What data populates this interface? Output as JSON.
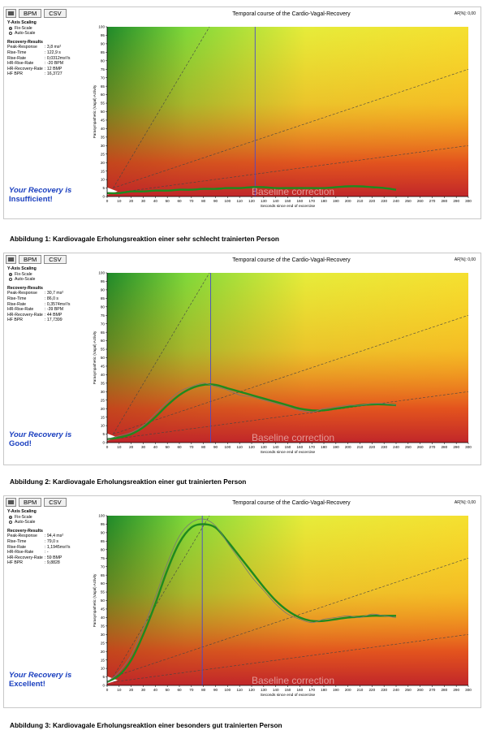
{
  "toolbar": {
    "bpm_label": "BPM",
    "csv_label": "CSV"
  },
  "af_label": "AF[%]: 0,00",
  "yaxis_scaling": {
    "title": "Y-Axis Scaling",
    "options": [
      "Fix-Scale",
      "Auto-Scale"
    ],
    "selected": "Fix-Scale"
  },
  "colors": {
    "curve_thick": "#1f8a1f",
    "curve_thin": "#777777",
    "verdict": "#1a3fbf",
    "marker": "#4a4acc"
  },
  "charts": [
    {
      "results": {
        "heading": "Recovery-Results",
        "rows": [
          {
            "k": "Peak-Response",
            "v": ": 3,8 ms²"
          },
          {
            "k": "Rise-Time",
            "v": ": 122,9 s"
          },
          {
            "k": "Rise-Rate",
            "v": ": 0,0312ms²/s"
          },
          {
            "k": "HR-Rise-Rate",
            "v": ": -20 BPM"
          },
          {
            "k": "HR-Recovery-Rate",
            "v": ": 12 BMP"
          },
          {
            "k": "HF BPR",
            "v": ": 16,3727"
          }
        ]
      },
      "verdict": {
        "line1": "Your Recovery is",
        "line2": "Insufficient!"
      },
      "watermark": "Baseline correction",
      "caption": "Abbildung 1: Kardiovagale Erholungsreaktion einer sehr schlecht trainierten Person"
    },
    {
      "results": {
        "heading": "Recovery-Results",
        "rows": [
          {
            "k": "Peak-Response",
            "v": ": 30,7 ms²"
          },
          {
            "k": "Rise-Time",
            "v": ": 86,0 s"
          },
          {
            "k": "Rise-Rate",
            "v": ": 0,3574ms²/s"
          },
          {
            "k": "HR-Rise-Rate",
            "v": ": -39 BPM"
          },
          {
            "k": "HR-Recovery-Rate",
            "v": ": 44 BMP"
          },
          {
            "k": "HF BPR",
            "v": ": 17,7399"
          }
        ]
      },
      "verdict": {
        "line1": "Your Recovery is",
        "line2": "Good!"
      },
      "watermark": "Baseline correction",
      "caption": "Abbildung 2: Kardiovagale Erholungsreaktion einer gut trainierten Person"
    },
    {
      "results": {
        "heading": "Recovery-Results",
        "rows": [
          {
            "k": "Peak-Response",
            "v": ": 94,4 ms²"
          },
          {
            "k": "Rise-Time",
            "v": ": 79,0 s"
          },
          {
            "k": "Rise-Rate",
            "v": ": 1,1945ms²/s"
          },
          {
            "k": "HR-Rise-Rate",
            "v": ": -"
          },
          {
            "k": "HR-Recovery-Rate",
            "v": ": 59 BMP"
          },
          {
            "k": "HF BPR",
            "v": ": 9,8828"
          }
        ]
      },
      "verdict": {
        "line1": "Your Recovery is",
        "line2": "Excellent!"
      },
      "watermark": "Baseline correction",
      "caption": "Abbildung 3: Kardiovagale Erholungsreaktion einer besonders gut trainierten Person"
    }
  ],
  "chart_data": [
    {
      "type": "line",
      "title": "Temporal course of the Cardio-Vagal-Recovery",
      "xlabel": "Seconds since end of excercise",
      "ylabel": "Parasympathetic (Vagal) Activity",
      "xlim": [
        0,
        300
      ],
      "ylim": [
        0,
        100
      ],
      "x_ticks": [
        0,
        10,
        20,
        30,
        40,
        50,
        60,
        70,
        80,
        90,
        100,
        110,
        120,
        130,
        140,
        150,
        160,
        170,
        180,
        190,
        200,
        210,
        220,
        230,
        240,
        250,
        260,
        270,
        280,
        290,
        300
      ],
      "y_ticks": [
        0,
        5,
        10,
        15,
        20,
        25,
        30,
        35,
        40,
        45,
        50,
        55,
        60,
        65,
        70,
        75,
        80,
        85,
        90,
        95,
        100
      ],
      "reference_lines": [
        {
          "x": [
            5,
            85
          ],
          "y": [
            5,
            100
          ]
        },
        {
          "x": [
            5,
            300
          ],
          "y": [
            5,
            75
          ]
        },
        {
          "x": [
            5,
            300
          ],
          "y": [
            2,
            30
          ]
        }
      ],
      "marker_x": 122.9,
      "series": [
        {
          "x": [
            0,
            10,
            20,
            30,
            40,
            50,
            60,
            70,
            80,
            90,
            100,
            110,
            120,
            130,
            140,
            150,
            160,
            170,
            180,
            190,
            200,
            210,
            220,
            230,
            240
          ],
          "y": [
            2,
            2,
            3,
            3,
            3.5,
            3.5,
            4,
            4,
            4.5,
            4.5,
            5,
            5,
            5.5,
            5.5,
            5,
            5,
            5,
            5,
            5,
            5.5,
            6,
            6,
            5.5,
            5,
            4
          ]
        }
      ]
    },
    {
      "type": "line",
      "title": "Temporal course of the Cardio-Vagal-Recovery",
      "xlabel": "Seconds since end of excercise",
      "ylabel": "Parasympathetic (Vagal) Activity",
      "xlim": [
        0,
        300
      ],
      "ylim": [
        0,
        100
      ],
      "x_ticks": [
        0,
        10,
        20,
        30,
        40,
        50,
        60,
        70,
        80,
        90,
        100,
        110,
        120,
        130,
        140,
        150,
        160,
        170,
        180,
        190,
        200,
        210,
        220,
        230,
        240,
        250,
        260,
        270,
        280,
        290,
        300
      ],
      "y_ticks": [
        0,
        5,
        10,
        15,
        20,
        25,
        30,
        35,
        40,
        45,
        50,
        55,
        60,
        65,
        70,
        75,
        80,
        85,
        90,
        95,
        100
      ],
      "reference_lines": [
        {
          "x": [
            5,
            85
          ],
          "y": [
            5,
            100
          ]
        },
        {
          "x": [
            5,
            300
          ],
          "y": [
            5,
            75
          ]
        },
        {
          "x": [
            5,
            300
          ],
          "y": [
            2,
            30
          ]
        }
      ],
      "marker_x": 86,
      "series": [
        {
          "x": [
            0,
            10,
            20,
            30,
            40,
            50,
            60,
            70,
            80,
            90,
            100,
            110,
            120,
            130,
            140,
            150,
            160,
            170,
            180,
            190,
            200,
            210,
            220,
            230,
            240
          ],
          "y": [
            2,
            3,
            5,
            9,
            15,
            22,
            28,
            32,
            34,
            34,
            32,
            30,
            28,
            26,
            24,
            22,
            20,
            19,
            19,
            20,
            21,
            22,
            22.5,
            22.5,
            22
          ]
        },
        {
          "x": [
            0,
            10,
            20,
            30,
            40,
            50,
            60,
            70,
            80,
            90,
            100,
            110,
            120,
            130,
            140,
            150,
            160,
            170,
            180,
            190,
            200,
            210,
            220,
            230,
            240
          ],
          "y": [
            2,
            4,
            6,
            10,
            17,
            24,
            30,
            33,
            35,
            33,
            31,
            28,
            27,
            25,
            23,
            21,
            19,
            18,
            20,
            21,
            22,
            22,
            23,
            23,
            22
          ]
        }
      ]
    },
    {
      "type": "line",
      "title": "Temporal course of the Cardio-Vagal-Recovery",
      "xlabel": "Seconds since end of excercise",
      "ylabel": "Parasympathetic (Vagal) Activity",
      "xlim": [
        0,
        300
      ],
      "ylim": [
        0,
        100
      ],
      "x_ticks": [
        0,
        10,
        20,
        30,
        40,
        50,
        60,
        70,
        80,
        90,
        100,
        110,
        120,
        130,
        140,
        150,
        160,
        170,
        180,
        190,
        200,
        210,
        220,
        230,
        240,
        250,
        260,
        270,
        280,
        290,
        300
      ],
      "y_ticks": [
        0,
        5,
        10,
        15,
        20,
        25,
        30,
        35,
        40,
        45,
        50,
        55,
        60,
        65,
        70,
        75,
        80,
        85,
        90,
        95,
        100
      ],
      "reference_lines": [
        {
          "x": [
            5,
            85
          ],
          "y": [
            5,
            100
          ]
        },
        {
          "x": [
            5,
            300
          ],
          "y": [
            5,
            75
          ]
        },
        {
          "x": [
            5,
            300
          ],
          "y": [
            2,
            30
          ]
        }
      ],
      "marker_x": 79,
      "series": [
        {
          "x": [
            0,
            10,
            20,
            30,
            40,
            50,
            60,
            70,
            80,
            90,
            100,
            110,
            120,
            130,
            140,
            150,
            160,
            170,
            180,
            190,
            200,
            210,
            220,
            230,
            240
          ],
          "y": [
            2,
            6,
            15,
            30,
            48,
            68,
            84,
            93,
            95,
            93,
            85,
            76,
            67,
            58,
            50,
            44,
            40,
            38,
            38,
            39,
            40,
            40.5,
            41,
            41,
            41
          ]
        },
        {
          "x": [
            0,
            10,
            20,
            30,
            40,
            50,
            60,
            70,
            80,
            90,
            100,
            110,
            120,
            130,
            140,
            150,
            160,
            170,
            180,
            190,
            200,
            210,
            220,
            230,
            240
          ],
          "y": [
            2,
            8,
            18,
            34,
            52,
            72,
            88,
            96,
            98,
            94,
            84,
            74,
            64,
            56,
            48,
            42,
            39,
            37,
            39,
            40,
            41,
            40,
            42,
            41,
            40
          ]
        }
      ]
    }
  ]
}
